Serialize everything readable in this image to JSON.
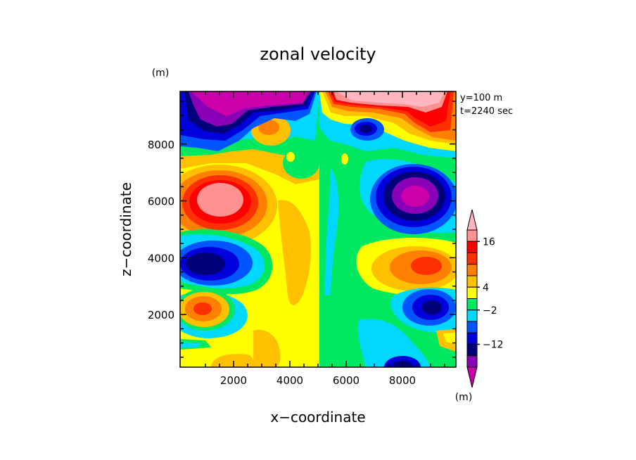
{
  "chart_data": {
    "type": "heatmap",
    "title": "zonal velocity",
    "xlabel": "x−coordinate",
    "ylabel": "z−coordinate",
    "x_unit": "(m)",
    "y_unit": "(m)",
    "colorbar_unit": "(m)",
    "annotations": [
      "y=100 m",
      "t=2240 sec"
    ],
    "xlim": [
      100,
      9900
    ],
    "ylim": [
      150,
      9850
    ],
    "x_ticks": [
      2000,
      4000,
      6000,
      8000
    ],
    "y_ticks": [
      2000,
      4000,
      6000,
      8000
    ],
    "colorbar": {
      "colors": [
        "#cc00aa",
        "#8a00b8",
        "#00007a",
        "#0000dd",
        "#0055ff",
        "#00d8ff",
        "#00e860",
        "#ffff00",
        "#ffc000",
        "#ff8000",
        "#ff3000",
        "#ff0000",
        "#ff9090",
        "#ffb6c1"
      ],
      "tick_labels": [
        "16",
        "4",
        "−2",
        "−12"
      ],
      "tick_boundary_index": [
        11,
        7,
        5,
        2
      ]
    },
    "contours": [
      {
        "value": -2,
        "color": "#00d8ff",
        "region": "right",
        "x": [
          5000,
          9900
        ],
        "z": [
          500,
          9850
        ]
      },
      {
        "value": 4,
        "color": "#ffc000",
        "region": "left core",
        "x": [
          100,
          4600
        ],
        "z": [
          150,
          9000
        ]
      }
    ]
  }
}
